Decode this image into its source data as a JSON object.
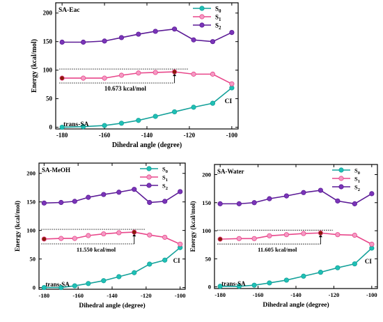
{
  "figure": {
    "legend_labels": [
      "S",
      "S",
      "S"
    ],
    "legend_subscripts": [
      "0",
      "1",
      "2"
    ],
    "colors": {
      "S0": "#14a19a",
      "S1": "#e8468a",
      "S2": "#5b1a96",
      "marker_S0": "#1fc0b5",
      "marker_S1": "#f59ac4",
      "marker_S2": "#7a35b8",
      "highlight": "#8b1a0a",
      "axis": "#000000"
    }
  },
  "chart_data": [
    {
      "type": "line",
      "title": "SA-Eac",
      "xlabel": "Dihedral angle (degree)",
      "ylabel": "Energy (kcal/mol)",
      "xlim": [
        -183,
        -97
      ],
      "ylim": [
        -3,
        218
      ],
      "xticks": [
        -180,
        -160,
        -140,
        -120,
        -100
      ],
      "yticks": [
        0,
        50,
        100,
        150,
        200
      ],
      "x": [
        -180,
        -170,
        -160,
        -152,
        -144,
        -136,
        -127,
        -118,
        -109,
        -100
      ],
      "series": [
        {
          "name": "S0",
          "values": [
            0,
            1,
            3,
            7,
            12,
            19,
            27,
            35,
            42,
            69
          ]
        },
        {
          "name": "S1",
          "values": [
            86,
            86,
            86,
            91,
            95,
            96,
            97,
            93,
            93,
            76
          ]
        },
        {
          "name": "S2",
          "values": [
            149,
            149,
            151,
            157,
            163,
            168,
            172,
            153,
            150,
            166
          ]
        }
      ],
      "annotations": {
        "barrier": "10.673 kcal/mol",
        "left": "trans-SA",
        "right": "CI"
      },
      "legend": "top-right",
      "highlight_points": [
        {
          "series": "S1",
          "x": -180
        },
        {
          "series": "S1",
          "x": -127
        }
      ]
    },
    {
      "type": "line",
      "title": "SA-MeOH",
      "xlabel": "Dihedral angle (degree)",
      "ylabel": "Energy (kcal/mol)",
      "xlim": [
        -183,
        -97
      ],
      "ylim": [
        -3,
        218
      ],
      "xticks": [
        -180,
        -160,
        -140,
        -120,
        -100
      ],
      "yticks": [
        0,
        50,
        100,
        150,
        200
      ],
      "x": [
        -180,
        -170,
        -162,
        -154,
        -145,
        -136,
        -127,
        -118,
        -109,
        -100
      ],
      "series": [
        {
          "name": "S0",
          "values": [
            0,
            0,
            3,
            7,
            12,
            19,
            26,
            41,
            48,
            70
          ]
        },
        {
          "name": "S1",
          "values": [
            85,
            86,
            86,
            91,
            94,
            96,
            97,
            92,
            88,
            76
          ]
        },
        {
          "name": "S2",
          "values": [
            148,
            149,
            151,
            158,
            163,
            167,
            172,
            149,
            151,
            168
          ]
        }
      ],
      "annotations": {
        "barrier": "11.550 kcal/mol",
        "left": "trans-SA",
        "right": "CI"
      },
      "legend": "top-right",
      "highlight_points": [
        {
          "series": "S1",
          "x": -180
        },
        {
          "series": "S1",
          "x": -127
        }
      ]
    },
    {
      "type": "line",
      "title": "SA-Water",
      "xlabel": "Dihedral angle (degree)",
      "ylabel": "Energy (kcal/mol)",
      "xlim": [
        -183,
        -97
      ],
      "ylim": [
        -3,
        218
      ],
      "xticks": [
        -180,
        -160,
        -140,
        -120,
        -100
      ],
      "yticks": [
        0,
        50,
        100,
        150,
        200
      ],
      "x": [
        -180,
        -170,
        -162,
        -154,
        -145,
        -136,
        -127,
        -118,
        -109,
        -100
      ],
      "series": [
        {
          "name": "S0",
          "values": [
            1,
            1,
            3,
            7,
            12,
            19,
            26,
            34,
            41,
            69
          ]
        },
        {
          "name": "S1",
          "values": [
            85,
            86,
            86,
            91,
            93,
            95,
            96,
            93,
            92,
            76
          ]
        },
        {
          "name": "S2",
          "values": [
            148,
            148,
            150,
            157,
            162,
            168,
            172,
            153,
            148,
            166
          ]
        }
      ],
      "annotations": {
        "barrier": "11.605 kcal/mol",
        "left": "trans-SA",
        "right": "CI"
      },
      "legend": "top-right",
      "highlight_points": [
        {
          "series": "S1",
          "x": -180
        },
        {
          "series": "S1",
          "x": -127
        }
      ]
    }
  ]
}
